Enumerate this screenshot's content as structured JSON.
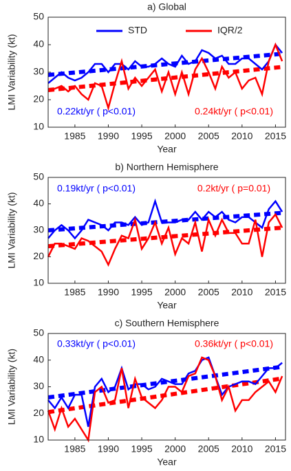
{
  "chart_data": [
    {
      "type": "line",
      "title": "a) Global",
      "x_label": "Year",
      "y_label": "LMI Variability (kt)",
      "x": [
        1981,
        1982,
        1983,
        1984,
        1985,
        1986,
        1987,
        1988,
        1989,
        1990,
        1991,
        1992,
        1993,
        1994,
        1995,
        1996,
        1997,
        1998,
        1999,
        2000,
        2001,
        2002,
        2003,
        2004,
        2005,
        2006,
        2007,
        2008,
        2009,
        2010,
        2011,
        2012,
        2013,
        2014,
        2015,
        2016
      ],
      "xlim": [
        1981,
        2016.5
      ],
      "xticks": [
        1985,
        1990,
        1995,
        2000,
        2005,
        2010,
        2015
      ],
      "ylim": [
        10,
        50
      ],
      "yticks": [
        10,
        20,
        30,
        40,
        50
      ],
      "legend": "top",
      "series": [
        {
          "name": "STD",
          "color": "#0000ff",
          "values": [
            26,
            28,
            30,
            28,
            27,
            28,
            30,
            33,
            33,
            30,
            33,
            33,
            31,
            34,
            32,
            32,
            33,
            35,
            33,
            32,
            36,
            33,
            34,
            38,
            37,
            35,
            36,
            33,
            33,
            35,
            35,
            33,
            31,
            34,
            40,
            37
          ],
          "trend": [
            29,
            36.7
          ]
        },
        {
          "name": "IQR/2",
          "color": "#ff0000",
          "values": [
            23,
            24,
            25,
            23,
            25,
            22,
            20,
            26,
            25,
            17,
            26,
            34,
            24,
            28,
            25,
            28,
            31,
            23,
            30,
            22,
            30,
            22,
            31,
            35,
            30,
            24,
            32,
            28,
            30,
            24,
            27,
            28,
            22,
            34,
            40,
            34
          ],
          "trend": [
            23.5,
            31.9
          ]
        }
      ],
      "annotations": [
        "0.22kt/yr ( p<0.01)",
        "0.24kt/yr ( p<0.01)"
      ]
    },
    {
      "type": "line",
      "title": "b) Northern Hemisphere",
      "x_label": "Year",
      "y_label": "LMI Variability (kt)",
      "x": [
        1981,
        1982,
        1983,
        1984,
        1985,
        1986,
        1987,
        1988,
        1989,
        1990,
        1991,
        1992,
        1993,
        1994,
        1995,
        1996,
        1997,
        1998,
        1999,
        2000,
        2001,
        2002,
        2003,
        2004,
        2005,
        2006,
        2007,
        2008,
        2009,
        2010,
        2011,
        2012,
        2013,
        2014,
        2015,
        2016
      ],
      "xlim": [
        1981,
        2016.5
      ],
      "xticks": [
        1985,
        1990,
        1995,
        2000,
        2005,
        2010,
        2015
      ],
      "ylim": [
        10,
        50
      ],
      "yticks": [
        10,
        20,
        30,
        40,
        50
      ],
      "series": [
        {
          "name": "STD",
          "color": "#0000ff",
          "values": [
            27,
            30,
            32,
            30,
            27,
            30,
            34,
            33,
            32,
            30,
            33,
            33,
            32,
            35,
            32,
            33,
            41,
            33,
            33,
            33,
            34,
            34,
            37,
            34,
            37,
            35,
            37,
            34,
            33,
            35,
            35,
            33,
            31,
            38,
            41,
            37
          ],
          "trend": [
            30,
            36.6
          ]
        },
        {
          "name": "IQR/2",
          "color": "#ff0000",
          "values": [
            20,
            25,
            25,
            24,
            23,
            27,
            26,
            24,
            22,
            17,
            23,
            28,
            27,
            34,
            23,
            27,
            33,
            25,
            31,
            21,
            27,
            25,
            33,
            22,
            34,
            28,
            34,
            29,
            29,
            25,
            25,
            34,
            20,
            33,
            36,
            31
          ],
          "trend": [
            24,
            31
          ]
        }
      ],
      "annotations": [
        "0.19kt/yr ( p<0.01)",
        "0.2kt/yr ( p=0.01)"
      ]
    },
    {
      "type": "line",
      "title": "c) Southern Hemisphere",
      "x_label": "Year",
      "y_label": "LMI Variability (kt)",
      "x": [
        1981,
        1982,
        1983,
        1984,
        1985,
        1986,
        1987,
        1988,
        1989,
        1990,
        1991,
        1992,
        1993,
        1994,
        1995,
        1996,
        1997,
        1998,
        1999,
        2000,
        2001,
        2002,
        2003,
        2004,
        2005,
        2006,
        2007,
        2008,
        2009,
        2010,
        2011,
        2012,
        2013,
        2014,
        2015,
        2016
      ],
      "xlim": [
        1981,
        2016.5
      ],
      "xticks": [
        1985,
        1990,
        1995,
        2000,
        2005,
        2010,
        2015
      ],
      "ylim": [
        10,
        50
      ],
      "yticks": [
        10,
        20,
        30,
        40,
        50
      ],
      "series": [
        {
          "name": "STD",
          "color": "#0000ff",
          "values": [
            25,
            22,
            26,
            22,
            27,
            27,
            15,
            30,
            33,
            28,
            30,
            37,
            29,
            31,
            31,
            29,
            30,
            33,
            32,
            31,
            31,
            35,
            36,
            40,
            41,
            34,
            27,
            30,
            31,
            32,
            32,
            31,
            34,
            37,
            37,
            39
          ],
          "trend": [
            26,
            37.5
          ]
        },
        {
          "name": "IQR/2",
          "color": "#ff0000",
          "values": [
            21,
            14,
            22,
            15,
            18,
            14,
            10,
            28,
            30,
            24,
            25,
            37,
            22,
            33,
            26,
            24,
            22,
            25,
            30,
            30,
            28,
            34,
            35,
            41,
            40,
            34,
            25,
            30,
            21,
            25,
            25,
            28,
            30,
            32,
            28,
            34
          ],
          "trend": [
            20.5,
            33.1
          ]
        }
      ],
      "annotations": [
        "0.33kt/yr ( p<0.01)",
        "0.36kt/yr ( p<0.01)"
      ]
    }
  ]
}
